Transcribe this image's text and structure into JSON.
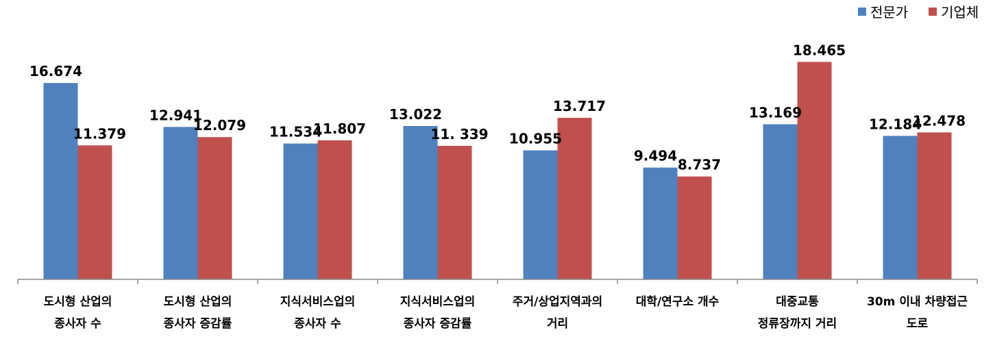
{
  "chart_data": {
    "type": "bar",
    "categories": [
      [
        "도시형 산업의",
        "종사자 수"
      ],
      [
        "도시형 산업의",
        "종사자 증감률"
      ],
      [
        "지식서비스업의",
        "종사자 수"
      ],
      [
        "지식서비스업의",
        "종사자 증감률"
      ],
      [
        "주거/상업지역과의",
        "거리"
      ],
      [
        "대학/연구소 개수"
      ],
      [
        "대중교통",
        "정류장까지 거리"
      ],
      [
        "30m 이내 차량접근",
        "도로"
      ]
    ],
    "series": [
      {
        "name": "전문가",
        "color": "#4F81BD",
        "values": [
          16.674,
          12.941,
          11.534,
          13.022,
          10.955,
          9.494,
          13.169,
          12.184
        ],
        "labels": [
          "16.674",
          "12.941",
          "11.534",
          "13.022",
          "10.955",
          "9.494",
          "13.169",
          "12.184"
        ]
      },
      {
        "name": "기업체",
        "color": "#C0504D",
        "values": [
          11.379,
          12.079,
          11.807,
          11.339,
          13.717,
          8.737,
          18.465,
          12.478
        ],
        "labels": [
          "11.379",
          "12.079",
          "11.807",
          "11. 339",
          "13.717",
          "8.737",
          "18.465",
          "12.478"
        ]
      }
    ],
    "ylim": [
      0,
      20
    ],
    "grid": false,
    "legend": "top-right",
    "title": "",
    "xlabel": "",
    "ylabel": ""
  }
}
